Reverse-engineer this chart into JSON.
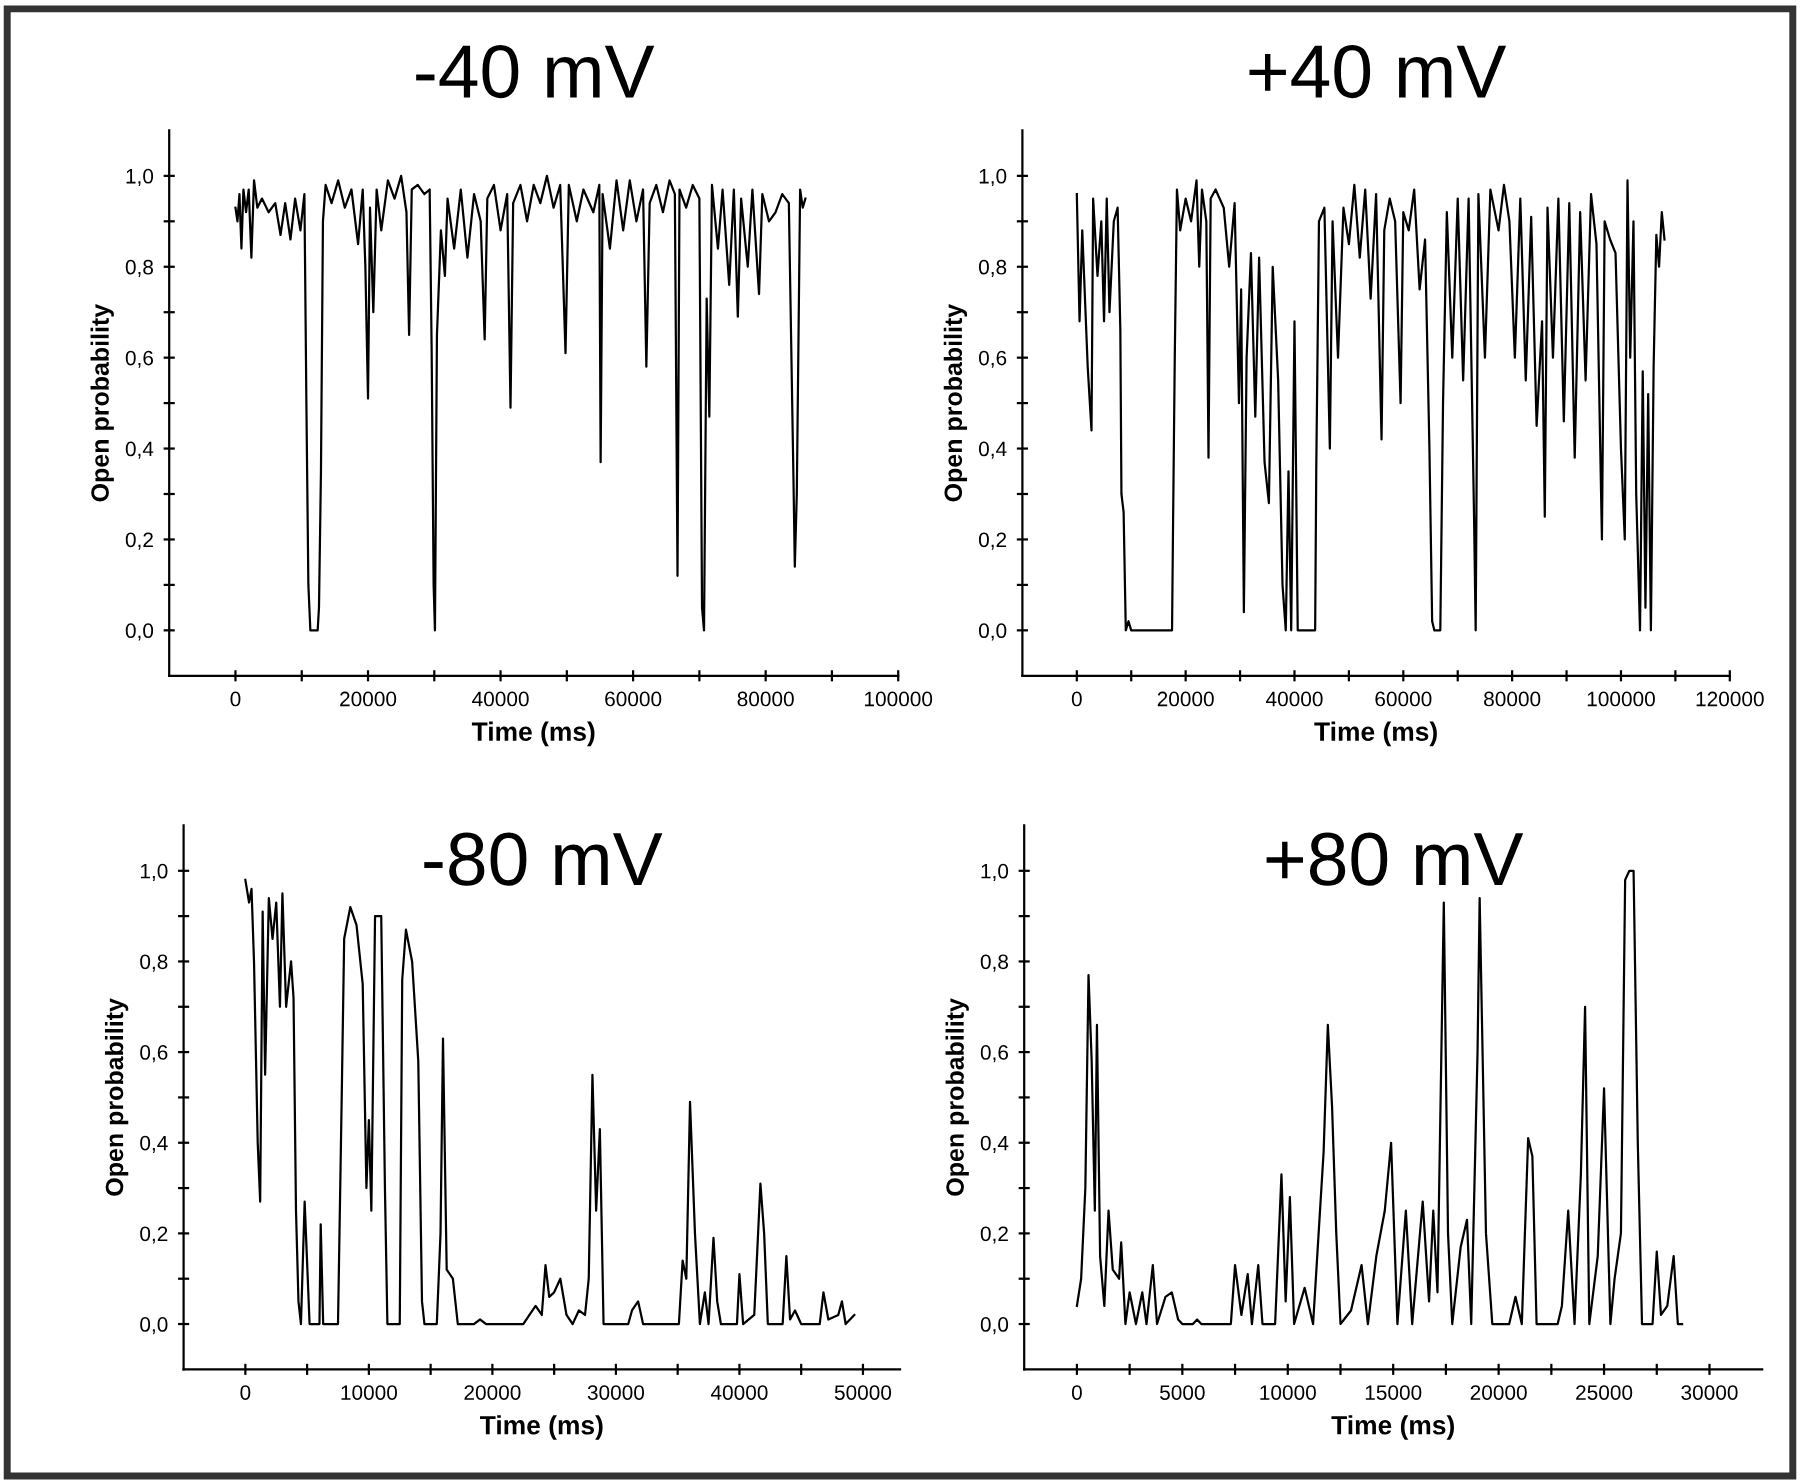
{
  "chart_data": [
    {
      "type": "line",
      "title": "-40 mV",
      "xlabel": "Time (ms)",
      "ylabel": "Open probability",
      "xlim": [
        -10000,
        100000
      ],
      "ylim": [
        -0.1,
        1.1
      ],
      "xticks": [
        0,
        {
          "value": 10000,
          "label": null
        },
        20000,
        {
          "value": 30000,
          "label": null
        },
        40000,
        {
          "value": 50000,
          "label": null
        },
        60000,
        {
          "value": 70000,
          "label": null
        },
        80000,
        {
          "value": 90000,
          "label": null
        },
        100000
      ],
      "yticks": [
        {
          "value": 0.0,
          "label": "0,0"
        },
        {
          "value": 0.1,
          "label": null
        },
        {
          "value": 0.2,
          "label": "0,2"
        },
        {
          "value": 0.3,
          "label": null
        },
        {
          "value": 0.4,
          "label": "0,4"
        },
        {
          "value": 0.5,
          "label": null
        },
        {
          "value": 0.6,
          "label": "0,6"
        },
        {
          "value": 0.7,
          "label": null
        },
        {
          "value": 0.8,
          "label": "0,8"
        },
        {
          "value": 0.9,
          "label": null
        },
        {
          "value": 1.0,
          "label": "1,0"
        }
      ],
      "grid": false,
      "legend": false,
      "marker": "none",
      "line_style": "solid",
      "series": [
        {
          "color": "#000000",
          "x": [
            0,
            300,
            600,
            900,
            1200,
            1600,
            2000,
            2400,
            2800,
            3300,
            4000,
            5000,
            6000,
            6800,
            7500,
            8300,
            9000,
            9800,
            10400,
            10700,
            11000,
            11300,
            12400,
            12600,
            12900,
            13200,
            13600,
            14500,
            15500,
            16500,
            17500,
            18500,
            19200,
            19600,
            20000,
            20300,
            20800,
            21300,
            22000,
            23000,
            24000,
            25000,
            25800,
            26200,
            26600,
            27500,
            28500,
            29300,
            29600,
            29900,
            30100,
            30400,
            31000,
            31600,
            32000,
            33000,
            34000,
            35000,
            36000,
            37000,
            37600,
            38000,
            39000,
            40000,
            41000,
            41500,
            41900,
            43000,
            44000,
            45000,
            46000,
            47000,
            48000,
            49000,
            49800,
            50300,
            51500,
            52500,
            54000,
            54900,
            55100,
            55400,
            56500,
            57500,
            58500,
            59500,
            60500,
            61500,
            62000,
            62500,
            63500,
            64500,
            65500,
            66300,
            66700,
            67000,
            68000,
            69000,
            70000,
            70400,
            70700,
            71100,
            71500,
            71900,
            72800,
            73500,
            74500,
            75200,
            75800,
            76300,
            77300,
            78000,
            79000,
            79500,
            80500,
            81500,
            82500,
            83500,
            84200,
            84400,
            84700,
            85200,
            85600,
            86000
          ],
          "values": [
            0.93,
            0.9,
            0.96,
            0.84,
            0.97,
            0.92,
            0.97,
            0.82,
            0.99,
            0.93,
            0.95,
            0.92,
            0.94,
            0.87,
            0.94,
            0.86,
            0.95,
            0.88,
            0.96,
            0.5,
            0.1,
            0.0,
            0.0,
            0.05,
            0.35,
            0.9,
            0.98,
            0.94,
            0.99,
            0.93,
            0.97,
            0.85,
            0.97,
            0.8,
            0.51,
            0.93,
            0.7,
            0.97,
            0.88,
            0.99,
            0.95,
            1.0,
            0.92,
            0.65,
            0.97,
            0.98,
            0.96,
            0.97,
            0.62,
            0.1,
            0.0,
            0.65,
            0.88,
            0.78,
            0.95,
            0.84,
            0.97,
            0.82,
            0.96,
            0.9,
            0.64,
            0.95,
            0.98,
            0.88,
            0.96,
            0.49,
            0.94,
            0.98,
            0.9,
            0.98,
            0.94,
            1.0,
            0.93,
            0.98,
            0.61,
            0.98,
            0.9,
            0.97,
            0.92,
            0.98,
            0.37,
            0.96,
            0.84,
            0.99,
            0.88,
            0.99,
            0.9,
            0.97,
            0.58,
            0.94,
            0.98,
            0.92,
            0.99,
            0.96,
            0.12,
            0.97,
            0.93,
            0.98,
            0.95,
            0.05,
            0.0,
            0.73,
            0.47,
            0.98,
            0.84,
            0.97,
            0.76,
            0.97,
            0.69,
            0.95,
            0.8,
            0.97,
            0.74,
            0.96,
            0.9,
            0.92,
            0.96,
            0.94,
            0.33,
            0.14,
            0.3,
            0.97,
            0.93,
            0.95
          ]
        }
      ]
    },
    {
      "type": "line",
      "title": "+40 mV",
      "xlabel": "Time (ms)",
      "ylabel": "Open probability",
      "xlim": [
        -10000,
        120000
      ],
      "ylim": [
        -0.1,
        1.1
      ],
      "xticks": [
        0,
        {
          "value": 10000,
          "label": null
        },
        20000,
        {
          "value": 30000,
          "label": null
        },
        40000,
        {
          "value": 50000,
          "label": null
        },
        60000,
        {
          "value": 70000,
          "label": null
        },
        80000,
        {
          "value": 90000,
          "label": null
        },
        100000,
        {
          "value": 110000,
          "label": null
        },
        120000
      ],
      "yticks": [
        {
          "value": 0.0,
          "label": "0,0"
        },
        {
          "value": 0.1,
          "label": null
        },
        {
          "value": 0.2,
          "label": "0,2"
        },
        {
          "value": 0.3,
          "label": null
        },
        {
          "value": 0.4,
          "label": "0,4"
        },
        {
          "value": 0.5,
          "label": null
        },
        {
          "value": 0.6,
          "label": "0,6"
        },
        {
          "value": 0.7,
          "label": null
        },
        {
          "value": 0.8,
          "label": "0,8"
        },
        {
          "value": 0.9,
          "label": null
        },
        {
          "value": 1.0,
          "label": "1,0"
        }
      ],
      "grid": false,
      "legend": false,
      "marker": "none",
      "line_style": "solid",
      "series": [
        {
          "color": "#000000",
          "x": [
            0,
            500,
            1000,
            2000,
            2700,
            3000,
            3800,
            4500,
            5000,
            5500,
            6000,
            6800,
            7500,
            8000,
            8200,
            8600,
            9000,
            9500,
            10000,
            17500,
            17700,
            18000,
            18400,
            19000,
            20000,
            21000,
            22000,
            22500,
            23000,
            23800,
            24200,
            24600,
            25500,
            27000,
            28000,
            29000,
            29800,
            30200,
            30700,
            31200,
            32000,
            32800,
            33500,
            34500,
            35300,
            36000,
            37000,
            37800,
            38400,
            38900,
            39400,
            40000,
            40600,
            43800,
            44000,
            44500,
            45500,
            46500,
            47000,
            48000,
            49000,
            50000,
            51000,
            52000,
            53000,
            54000,
            55000,
            56000,
            56500,
            57500,
            58500,
            59500,
            60000,
            61000,
            62000,
            63000,
            64000,
            64800,
            65300,
            65700,
            66800,
            67300,
            68000,
            69000,
            70000,
            71000,
            72000,
            73000,
            73300,
            73800,
            75000,
            76000,
            77500,
            78500,
            79500,
            80500,
            81500,
            82500,
            83500,
            84500,
            85500,
            86000,
            86500,
            87500,
            88500,
            89500,
            90500,
            91500,
            92500,
            93500,
            94500,
            95500,
            96500,
            97000,
            98000,
            99000,
            100000,
            100700,
            101200,
            101700,
            102300,
            102800,
            103500,
            104000,
            104500,
            105000,
            105500,
            106000,
            106500,
            107000,
            107500,
            108000
          ],
          "values": [
            0.96,
            0.68,
            0.88,
            0.58,
            0.44,
            0.95,
            0.78,
            0.9,
            0.68,
            0.95,
            0.7,
            0.9,
            0.93,
            0.66,
            0.3,
            0.26,
            0.0,
            0.02,
            0.0,
            0.0,
            0.25,
            0.6,
            0.97,
            0.88,
            0.95,
            0.9,
            0.99,
            0.8,
            0.97,
            0.9,
            0.38,
            0.95,
            0.97,
            0.93,
            0.8,
            0.94,
            0.5,
            0.75,
            0.04,
            0.6,
            0.83,
            0.47,
            0.82,
            0.37,
            0.28,
            0.8,
            0.55,
            0.1,
            0.0,
            0.35,
            0.0,
            0.68,
            0.0,
            0.0,
            0.35,
            0.9,
            0.93,
            0.4,
            0.9,
            0.6,
            0.93,
            0.85,
            0.98,
            0.82,
            0.97,
            0.73,
            0.96,
            0.42,
            0.88,
            0.95,
            0.9,
            0.5,
            0.92,
            0.88,
            0.97,
            0.75,
            0.86,
            0.4,
            0.02,
            0.0,
            0.0,
            0.5,
            0.92,
            0.6,
            0.95,
            0.55,
            0.95,
            0.25,
            0.0,
            0.96,
            0.6,
            0.97,
            0.88,
            0.98,
            0.9,
            0.6,
            0.95,
            0.55,
            0.91,
            0.45,
            0.68,
            0.25,
            0.93,
            0.6,
            0.95,
            0.46,
            0.94,
            0.38,
            0.92,
            0.55,
            0.96,
            0.85,
            0.2,
            0.9,
            0.86,
            0.83,
            0.4,
            0.2,
            0.99,
            0.6,
            0.9,
            0.3,
            0.0,
            0.57,
            0.05,
            0.52,
            0.0,
            0.58,
            0.87,
            0.8,
            0.92,
            0.86
          ]
        }
      ]
    },
    {
      "type": "line",
      "title": "-80 mV",
      "xlabel": "Time (ms)",
      "ylabel": "Open probability",
      "xlim": [
        -5000,
        53000
      ],
      "ylim": [
        -0.1,
        1.1
      ],
      "xticks": [
        0,
        {
          "value": 5000,
          "label": null
        },
        10000,
        {
          "value": 15000,
          "label": null
        },
        20000,
        {
          "value": 25000,
          "label": null
        },
        30000,
        {
          "value": 35000,
          "label": null
        },
        40000,
        {
          "value": 45000,
          "label": null
        },
        50000
      ],
      "yticks": [
        {
          "value": 0.0,
          "label": "0,0"
        },
        {
          "value": 0.1,
          "label": null
        },
        {
          "value": 0.2,
          "label": "0,2"
        },
        {
          "value": 0.3,
          "label": null
        },
        {
          "value": 0.4,
          "label": "0,4"
        },
        {
          "value": 0.5,
          "label": null
        },
        {
          "value": 0.6,
          "label": "0,6"
        },
        {
          "value": 0.7,
          "label": null
        },
        {
          "value": 0.8,
          "label": "0,8"
        },
        {
          "value": 0.9,
          "label": null
        },
        {
          "value": 1.0,
          "label": "1,0"
        }
      ],
      "grid": false,
      "legend": false,
      "marker": "none",
      "line_style": "solid",
      "series": [
        {
          "color": "#000000",
          "x": [
            0,
            300,
            500,
            700,
            1000,
            1200,
            1400,
            1600,
            1900,
            2200,
            2500,
            2800,
            3000,
            3300,
            3700,
            3900,
            4100,
            4300,
            4500,
            4800,
            5200,
            6000,
            6100,
            6300,
            7500,
            7800,
            8000,
            8500,
            9000,
            9500,
            9800,
            10000,
            10200,
            10500,
            11000,
            11300,
            11500,
            12500,
            12700,
            13000,
            13500,
            14000,
            14300,
            14500,
            15500,
            15800,
            16000,
            16300,
            16800,
            17200,
            18500,
            19000,
            19500,
            22500,
            23000,
            23500,
            24000,
            24300,
            24600,
            25000,
            25500,
            26000,
            26500,
            27000,
            27500,
            27800,
            28100,
            28400,
            28700,
            29000,
            31000,
            31300,
            31800,
            32200,
            35100,
            35400,
            35700,
            36000,
            36400,
            36800,
            37200,
            37500,
            37900,
            38200,
            38500,
            39800,
            40000,
            40300,
            41200,
            41700,
            42000,
            42300,
            43500,
            43800,
            44100,
            44500,
            45000,
            46500,
            46800,
            47200,
            48000,
            48300,
            48600,
            49300
          ],
          "values": [
            0.98,
            0.93,
            0.96,
            0.8,
            0.4,
            0.27,
            0.91,
            0.55,
            0.94,
            0.85,
            0.93,
            0.7,
            0.95,
            0.7,
            0.8,
            0.72,
            0.25,
            0.05,
            0.0,
            0.27,
            0.0,
            0.0,
            0.22,
            0.0,
            0.0,
            0.5,
            0.85,
            0.92,
            0.88,
            0.75,
            0.3,
            0.45,
            0.25,
            0.9,
            0.9,
            0.3,
            0.0,
            0.0,
            0.76,
            0.87,
            0.8,
            0.58,
            0.05,
            0.0,
            0.0,
            0.2,
            0.63,
            0.12,
            0.1,
            0.0,
            0.0,
            0.01,
            0.0,
            0.0,
            0.02,
            0.04,
            0.02,
            0.13,
            0.06,
            0.07,
            0.1,
            0.02,
            0.0,
            0.03,
            0.02,
            0.1,
            0.55,
            0.25,
            0.43,
            0.0,
            0.0,
            0.03,
            0.05,
            0.0,
            0.0,
            0.14,
            0.1,
            0.49,
            0.2,
            0.0,
            0.07,
            0.0,
            0.19,
            0.05,
            0.0,
            0.0,
            0.11,
            0.0,
            0.02,
            0.31,
            0.2,
            0.0,
            0.0,
            0.15,
            0.01,
            0.03,
            0.0,
            0.0,
            0.07,
            0.01,
            0.02,
            0.05,
            0.0,
            0.02
          ]
        }
      ]
    },
    {
      "type": "line",
      "title": "+80 mV",
      "xlabel": "Time (ms)",
      "ylabel": "Open probability",
      "xlim": [
        -2500,
        32500
      ],
      "ylim": [
        -0.1,
        1.1
      ],
      "xticks": [
        0,
        {
          "value": 2500,
          "label": null
        },
        5000,
        {
          "value": 7500,
          "label": null
        },
        10000,
        {
          "value": 12500,
          "label": null
        },
        15000,
        {
          "value": 17500,
          "label": null
        },
        20000,
        {
          "value": 22500,
          "label": null
        },
        25000,
        {
          "value": 27500,
          "label": null
        },
        30000
      ],
      "yticks": [
        {
          "value": 0.0,
          "label": "0,0"
        },
        {
          "value": 0.1,
          "label": null
        },
        {
          "value": 0.2,
          "label": "0,2"
        },
        {
          "value": 0.3,
          "label": null
        },
        {
          "value": 0.4,
          "label": "0,4"
        },
        {
          "value": 0.5,
          "label": null
        },
        {
          "value": 0.6,
          "label": "0,6"
        },
        {
          "value": 0.7,
          "label": null
        },
        {
          "value": 0.8,
          "label": "0,8"
        },
        {
          "value": 0.9,
          "label": null
        },
        {
          "value": 1.0,
          "label": "1,0"
        }
      ],
      "grid": false,
      "legend": false,
      "marker": "none",
      "line_style": "solid",
      "series": [
        {
          "color": "#000000",
          "x": [
            0,
            200,
            400,
            550,
            700,
            850,
            950,
            1100,
            1300,
            1500,
            1700,
            2000,
            2100,
            2300,
            2500,
            2800,
            3100,
            3300,
            3600,
            3800,
            4200,
            4500,
            4800,
            5000,
            5500,
            5700,
            5900,
            7300,
            7500,
            7800,
            8100,
            8300,
            8600,
            8800,
            9400,
            9700,
            9900,
            10100,
            10300,
            10800,
            11200,
            11700,
            11900,
            12100,
            12300,
            12500,
            13000,
            13500,
            13800,
            14200,
            14600,
            14900,
            15200,
            15600,
            15900,
            16400,
            16700,
            16900,
            17100,
            17400,
            17600,
            17800,
            18200,
            18500,
            18700,
            19000,
            19100,
            19400,
            19700,
            20500,
            20800,
            21100,
            21400,
            21600,
            21800,
            22800,
            23000,
            23300,
            23600,
            23900,
            24100,
            24300,
            24700,
            25000,
            25300,
            25500,
            25800,
            26000,
            26200,
            26400,
            26600,
            26800,
            27300,
            27500,
            27700,
            28000,
            28300,
            28500,
            28700
          ],
          "values": [
            0.04,
            0.1,
            0.3,
            0.77,
            0.58,
            0.25,
            0.66,
            0.15,
            0.04,
            0.25,
            0.12,
            0.1,
            0.18,
            0.0,
            0.07,
            0.0,
            0.07,
            0.0,
            0.13,
            0.0,
            0.06,
            0.07,
            0.01,
            0.0,
            0.0,
            0.01,
            0.0,
            0.0,
            0.13,
            0.02,
            0.11,
            0.0,
            0.13,
            0.0,
            0.0,
            0.33,
            0.05,
            0.28,
            0.0,
            0.08,
            0.0,
            0.38,
            0.66,
            0.48,
            0.2,
            0.0,
            0.03,
            0.13,
            0.0,
            0.15,
            0.25,
            0.4,
            0.0,
            0.25,
            0.0,
            0.27,
            0.05,
            0.25,
            0.07,
            0.93,
            0.2,
            0.0,
            0.17,
            0.23,
            0.0,
            0.6,
            0.94,
            0.2,
            0.0,
            0.0,
            0.06,
            0.0,
            0.41,
            0.37,
            0.0,
            0.0,
            0.04,
            0.25,
            0.0,
            0.33,
            0.7,
            0.0,
            0.15,
            0.52,
            0.0,
            0.1,
            0.2,
            0.98,
            1.0,
            1.0,
            0.4,
            0.0,
            0.0,
            0.16,
            0.02,
            0.04,
            0.15,
            0.0,
            0.0
          ]
        }
      ]
    }
  ]
}
